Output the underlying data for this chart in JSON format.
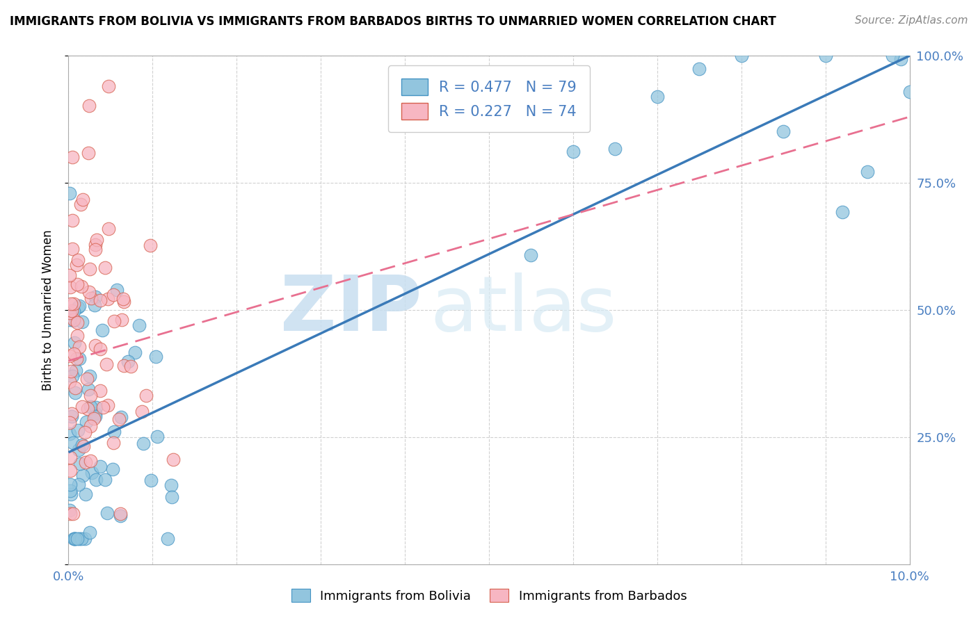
{
  "title": "IMMIGRANTS FROM BOLIVIA VS IMMIGRANTS FROM BARBADOS BIRTHS TO UNMARRIED WOMEN CORRELATION CHART",
  "source": "Source: ZipAtlas.com",
  "ylabel": "Births to Unmarried Women",
  "ytick_vals": [
    0,
    25,
    50,
    75,
    100
  ],
  "ytick_labels": [
    "",
    "25.0%",
    "50.0%",
    "75.0%",
    "100.0%"
  ],
  "xtick_vals": [
    0,
    1,
    2,
    3,
    4,
    5,
    6,
    7,
    8,
    9,
    10
  ],
  "xtick_labels": [
    "0.0%",
    "",
    "",
    "",
    "",
    "",
    "",
    "",
    "",
    "",
    "10.0%"
  ],
  "color_bolivia": "#92c5de",
  "color_barbados": "#f7b6c2",
  "color_bolivia_edge": "#4393c3",
  "color_barbados_edge": "#d6604d",
  "color_bolivia_line": "#3a7ab8",
  "color_barbados_line": "#e87090",
  "watermark_zip": "ZIP",
  "watermark_atlas": "atlas",
  "xmin": 0.0,
  "xmax": 10.0,
  "ymin": 0.0,
  "ymax": 100.0,
  "bolivia_line_x0": 0.0,
  "bolivia_line_y0": 22.0,
  "bolivia_line_x1": 10.0,
  "bolivia_line_y1": 100.0,
  "barbados_line_x0": 0.0,
  "barbados_line_y0": 40.0,
  "barbados_line_x1": 10.0,
  "barbados_line_y1": 88.0
}
